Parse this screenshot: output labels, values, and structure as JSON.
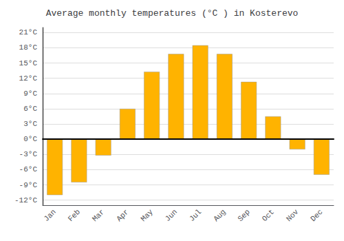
{
  "chart_data": {
    "type": "bar",
    "title": "Average monthly temperatures (°C ) in Kosterevo",
    "categories": [
      "Jan",
      "Feb",
      "Mar",
      "Apr",
      "May",
      "Jun",
      "Jul",
      "Aug",
      "Sep",
      "Oct",
      "Nov",
      "Dec"
    ],
    "values": [
      -11,
      -8.5,
      -3.2,
      6.0,
      13.3,
      16.8,
      18.5,
      16.8,
      11.3,
      4.5,
      -2.0,
      -7.0
    ],
    "color": "#FFB300",
    "ylim": [
      -13,
      22
    ],
    "yticks": [
      {
        "value": -12,
        "label": "-12°C"
      },
      {
        "value": -9,
        "label": "-9°C"
      },
      {
        "value": -6,
        "label": "-6°C"
      },
      {
        "value": -3,
        "label": "-3°C"
      },
      {
        "value": 0,
        "label": "0°C"
      },
      {
        "value": 3,
        "label": "3°C"
      },
      {
        "value": 6,
        "label": "6°C"
      },
      {
        "value": 9,
        "label": "9°C"
      },
      {
        "value": 12,
        "label": "12°C"
      },
      {
        "value": 15,
        "label": "15°C"
      },
      {
        "value": 18,
        "label": "18°C"
      },
      {
        "value": 21,
        "label": "21°C"
      }
    ],
    "grid": true
  }
}
